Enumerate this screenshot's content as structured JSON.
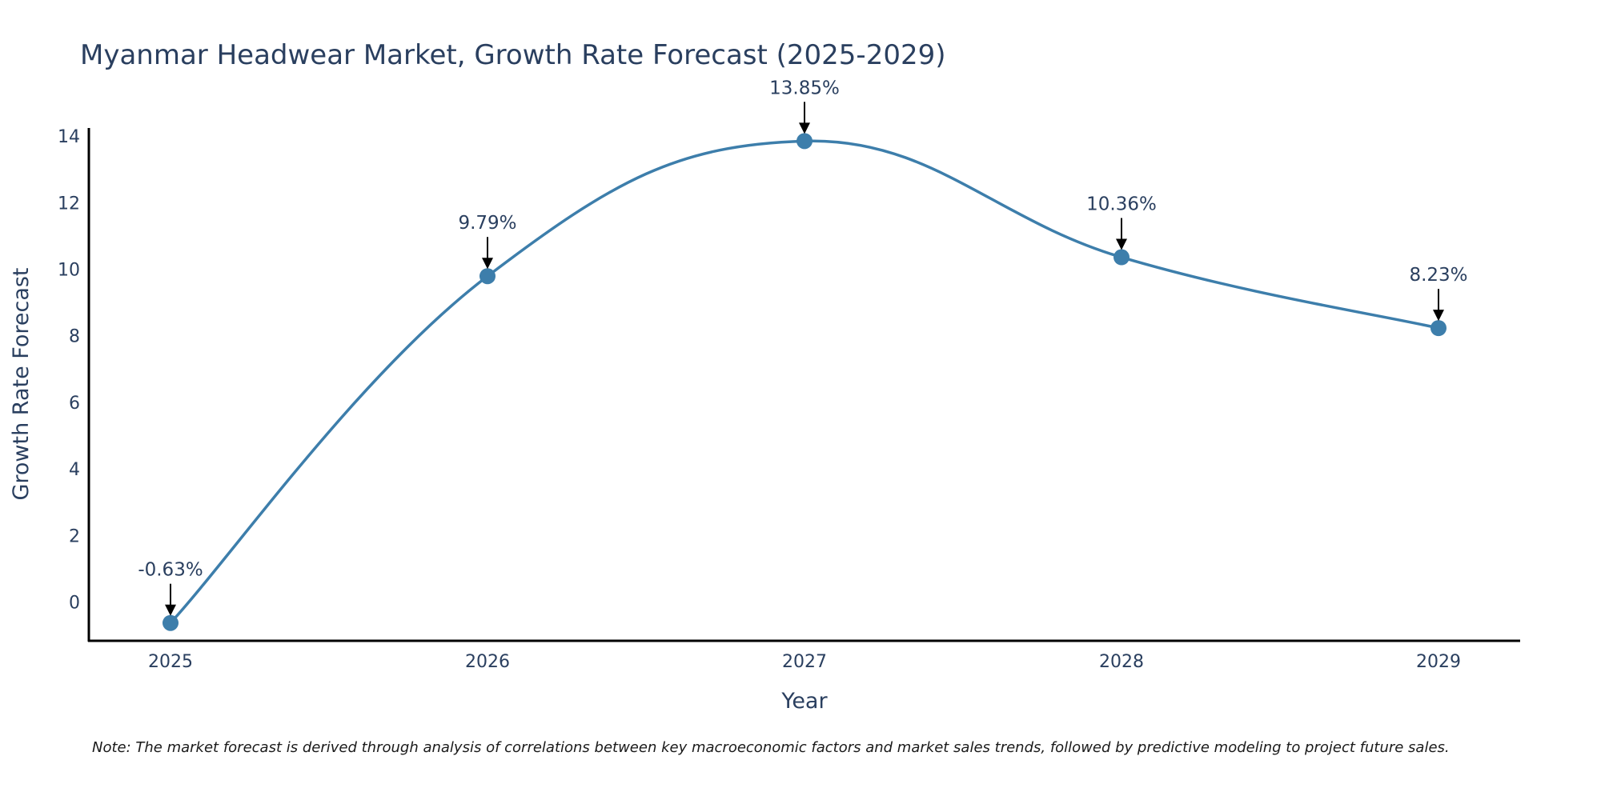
{
  "chart_data": {
    "type": "line",
    "title": "Myanmar Headwear Market, Growth Rate Forecast (2025-2029)",
    "xlabel": "Year",
    "ylabel": "Growth Rate Forecast",
    "categories": [
      "2025",
      "2026",
      "2027",
      "2028",
      "2029"
    ],
    "values": [
      -0.63,
      9.79,
      13.85,
      10.36,
      8.23
    ],
    "data_labels": [
      "-0.63%",
      "9.79%",
      "13.85%",
      "10.36%",
      "8.23%"
    ],
    "yticks": [
      0,
      2,
      4,
      6,
      8,
      10,
      12,
      14
    ],
    "ylim": [
      -1.2,
      14.4
    ],
    "grid": false,
    "line_shape": "spline",
    "color": "#3d7eab",
    "note": "Note: The market forecast is derived through analysis of correlations between key macroeconomic factors and market sales trends, followed by predictive modeling to project future sales."
  }
}
